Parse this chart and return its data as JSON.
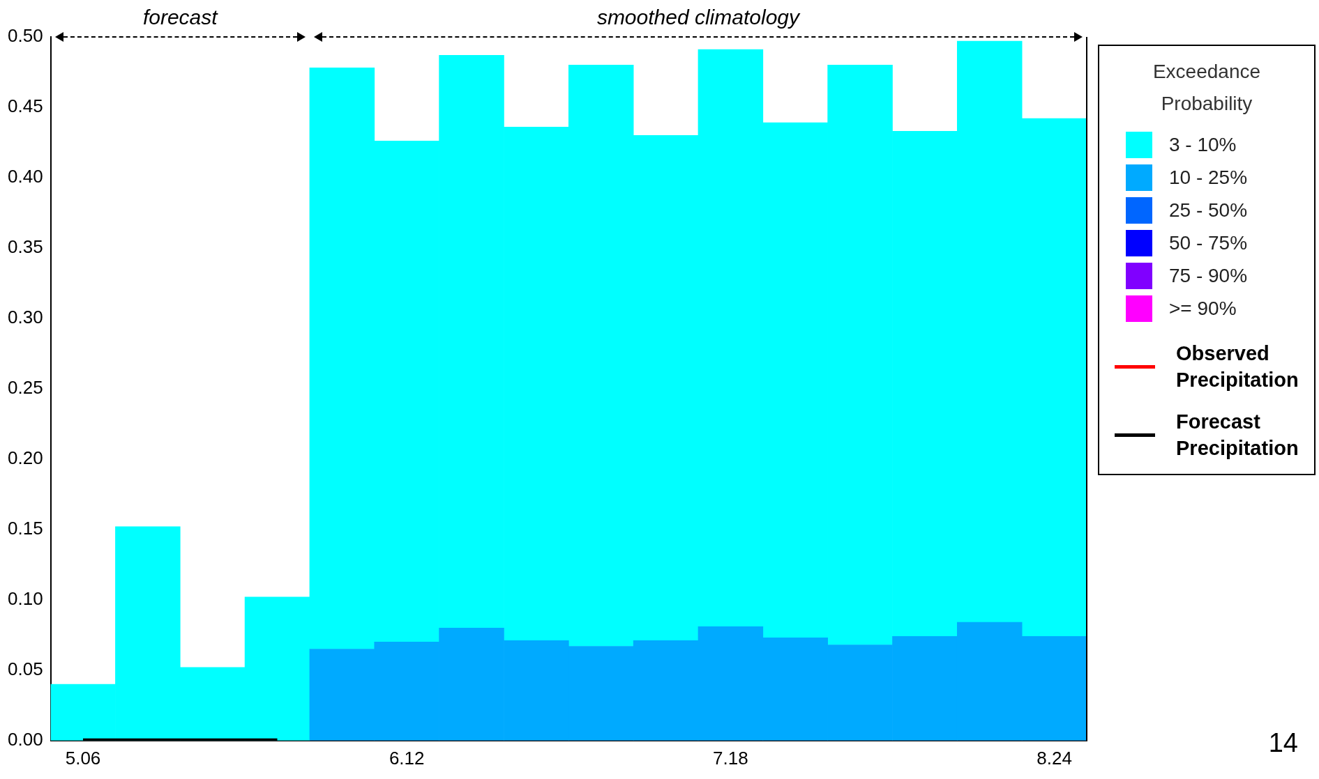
{
  "chart_data": {
    "type": "bar",
    "stacked": true,
    "legend_title": "Exceedance Probability",
    "legend": "right",
    "categories": [
      "5.06",
      null,
      null,
      null,
      null,
      "6.12",
      null,
      null,
      null,
      null,
      "7.18",
      null,
      null,
      null,
      null,
      "8.24"
    ],
    "ylim": [
      0,
      0.5
    ],
    "yticks": [
      {
        "value": 0,
        "label": "0.00"
      },
      {
        "value": 0.05,
        "label": "0.05"
      },
      {
        "value": 0.1,
        "label": "0.10"
      },
      {
        "value": 0.15,
        "label": "0.15"
      },
      {
        "value": 0.2,
        "label": "0.20"
      },
      {
        "value": 0.25,
        "label": "0.25"
      },
      {
        "value": 0.3,
        "label": "0.30"
      },
      {
        "value": 0.35,
        "label": "0.35"
      },
      {
        "value": 0.4,
        "label": "0.40"
      },
      {
        "value": 0.45,
        "label": "0.45"
      },
      {
        "value": 0.5,
        "label": "0.50"
      }
    ],
    "annotations": [
      "forecast",
      "smoothed climatology",
      "14"
    ],
    "series": [
      {
        "name": ">= 90%",
        "color": "#ff00ff",
        "values": [
          null,
          null,
          null,
          null,
          null,
          null,
          null,
          null,
          null,
          null,
          null,
          null,
          null,
          null,
          null,
          null
        ]
      },
      {
        "name": "75 - 90%",
        "color": "#8000ff",
        "values": [
          null,
          null,
          null,
          null,
          null,
          null,
          null,
          null,
          null,
          null,
          null,
          null,
          null,
          null,
          null,
          null
        ]
      },
      {
        "name": "50 - 75%",
        "color": "#0000ff",
        "values": [
          null,
          null,
          null,
          null,
          null,
          null,
          null,
          null,
          null,
          null,
          null,
          null,
          null,
          null,
          null,
          null
        ]
      },
      {
        "name": "25 - 50%",
        "color": "#0066ff",
        "values": [
          null,
          null,
          null,
          null,
          null,
          null,
          null,
          null,
          null,
          null,
          null,
          null,
          null,
          null,
          null,
          null
        ]
      },
      {
        "name": "10 - 25%",
        "color": "#00aaff",
        "values": [
          null,
          null,
          null,
          null,
          0.065,
          0.07,
          0.08,
          0.071,
          0.067,
          0.071,
          0.081,
          0.073,
          0.068,
          0.074,
          0.084,
          0.074
        ]
      },
      {
        "name": "3 - 10%",
        "color": "#00ffff",
        "values": [
          0.04,
          0.152,
          0.052,
          0.102,
          0.413,
          0.356,
          0.407,
          0.365,
          0.413,
          0.359,
          0.41,
          0.366,
          0.412,
          0.359,
          0.413,
          0.368
        ]
      },
      {
        "name": "Observed Precipitation",
        "type": "line",
        "color": "#ff0000",
        "values": [
          null,
          null,
          null,
          null,
          null,
          null,
          null,
          null,
          null,
          null,
          null,
          null,
          null,
          null,
          null,
          null
        ]
      },
      {
        "name": "Forecast Precipitation",
        "type": "line",
        "color": "#000000",
        "values": [
          0,
          0,
          0,
          0,
          null,
          null,
          null,
          null,
          null,
          null,
          null,
          null,
          null,
          null,
          null,
          null
        ]
      }
    ]
  }
}
